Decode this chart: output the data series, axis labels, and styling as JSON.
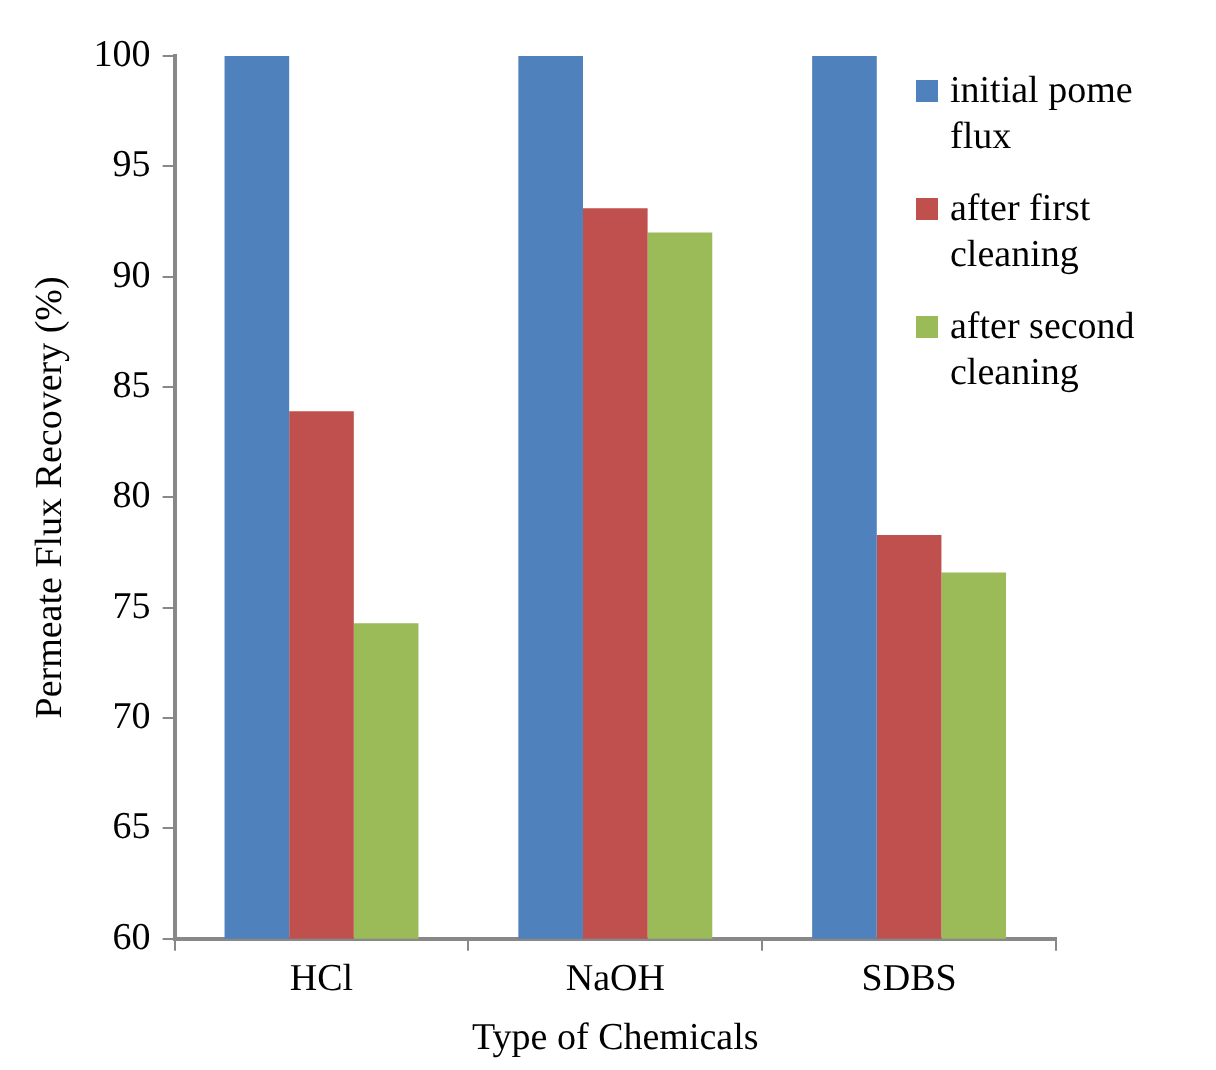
{
  "chart_data": {
    "type": "bar",
    "xlabel": "Type of Chemicals",
    "ylabel": "Permeate Flux Recovery (%)",
    "categories": [
      "HCl",
      "NaOH",
      "SDBS"
    ],
    "series": [
      {
        "name": "initial pome flux",
        "color": "#4f81bd",
        "values": [
          100,
          100,
          100
        ]
      },
      {
        "name": "after first cleaning",
        "color": "#c0504d",
        "values": [
          83.9,
          93.1,
          78.3
        ]
      },
      {
        "name": "after second cleaning",
        "color": "#9bbb59",
        "values": [
          74.3,
          92.0,
          76.6
        ]
      }
    ],
    "ylim": [
      60,
      100
    ],
    "yticks": [
      60,
      65,
      70,
      75,
      80,
      85,
      90,
      95,
      100
    ],
    "grid": false,
    "legend": "right"
  }
}
